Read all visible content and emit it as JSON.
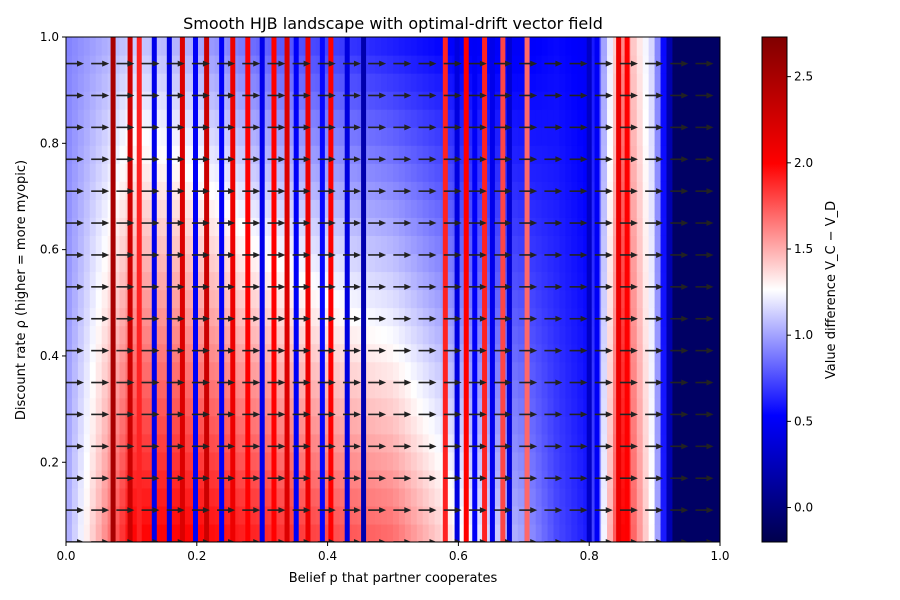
{
  "chart_data": {
    "type": "heatmap",
    "title": "Smooth HJB landscape with optimal-drift vector field",
    "xlabel": "Belief p that partner cooperates",
    "ylabel": "Discount rate ρ  (higher = more myopic)",
    "xlim": [
      0.0,
      1.0
    ],
    "ylim": [
      0.05,
      1.0
    ],
    "xticks": [
      "0.0",
      "0.2",
      "0.4",
      "0.6",
      "0.8",
      "1.0"
    ],
    "yticks": [
      "0.2",
      "0.4",
      "0.6",
      "0.8",
      "1.0"
    ],
    "colormap": "seismic",
    "colorbar": {
      "label": "Value difference V_C − V_D",
      "range": [
        -0.2,
        2.73
      ],
      "ticks": [
        "0.0",
        "0.5",
        "1.0",
        "1.5",
        "2.0",
        "2.5"
      ]
    },
    "background_profile": {
      "p": [
        0.0,
        0.05,
        0.1,
        0.2,
        0.3,
        0.4,
        0.5,
        0.6,
        0.7,
        0.75,
        0.8,
        0.85,
        0.9,
        0.93,
        1.0
      ],
      "value_at_low_rho": [
        1.0,
        1.5,
        2.0,
        2.0,
        1.9,
        1.8,
        1.7,
        1.3,
        1.0,
        0.75,
        0.6,
        2.0,
        1.2,
        -0.1,
        -0.1
      ],
      "value_at_high_rho": [
        0.9,
        1.0,
        1.1,
        1.0,
        0.8,
        0.7,
        0.6,
        0.5,
        0.5,
        0.55,
        0.5,
        1.6,
        1.1,
        -0.1,
        -0.1
      ]
    },
    "stripes": [
      {
        "p": 0.072,
        "value": 2.5
      },
      {
        "p": 0.098,
        "value": 2.3
      },
      {
        "p": 0.112,
        "value": 1.9
      },
      {
        "p": 0.135,
        "value": 0.45
      },
      {
        "p": 0.158,
        "value": 0.4
      },
      {
        "p": 0.178,
        "value": 2.2
      },
      {
        "p": 0.198,
        "value": 0.5
      },
      {
        "p": 0.215,
        "value": 2.3
      },
      {
        "p": 0.238,
        "value": 0.5
      },
      {
        "p": 0.255,
        "value": 2.1
      },
      {
        "p": 0.278,
        "value": 2.0
      },
      {
        "p": 0.3,
        "value": 0.45
      },
      {
        "p": 0.318,
        "value": 2.0
      },
      {
        "p": 0.338,
        "value": 2.2
      },
      {
        "p": 0.352,
        "value": 0.5
      },
      {
        "p": 0.37,
        "value": 2.1
      },
      {
        "p": 0.392,
        "value": 0.55
      },
      {
        "p": 0.405,
        "value": 2.0
      },
      {
        "p": 0.43,
        "value": 0.4
      },
      {
        "p": 0.455,
        "value": 0.2
      },
      {
        "p": 0.58,
        "value": 1.9
      },
      {
        "p": 0.598,
        "value": 0.4
      },
      {
        "p": 0.612,
        "value": 2.0
      },
      {
        "p": 0.625,
        "value": 0.5
      },
      {
        "p": 0.64,
        "value": 1.9
      },
      {
        "p": 0.652,
        "value": 0.45
      },
      {
        "p": 0.668,
        "value": 1.8
      },
      {
        "p": 0.678,
        "value": 0.35
      },
      {
        "p": 0.705,
        "value": 1.7
      },
      {
        "p": 0.8,
        "value": 0.3
      },
      {
        "p": 0.812,
        "value": 0.5
      },
      {
        "p": 0.845,
        "value": 2.1
      },
      {
        "p": 0.858,
        "value": 2.0
      }
    ],
    "quiver": {
      "rho_rows": [
        0.05,
        0.11,
        0.17,
        0.23,
        0.29,
        0.35,
        0.41,
        0.47,
        0.53,
        0.59,
        0.65,
        0.71,
        0.77,
        0.83,
        0.89,
        0.95
      ],
      "p_start": 0.0,
      "p_step": 0.0385,
      "p_end": 1.0,
      "direction": "positive p (rightward)",
      "color": "#222222"
    }
  }
}
